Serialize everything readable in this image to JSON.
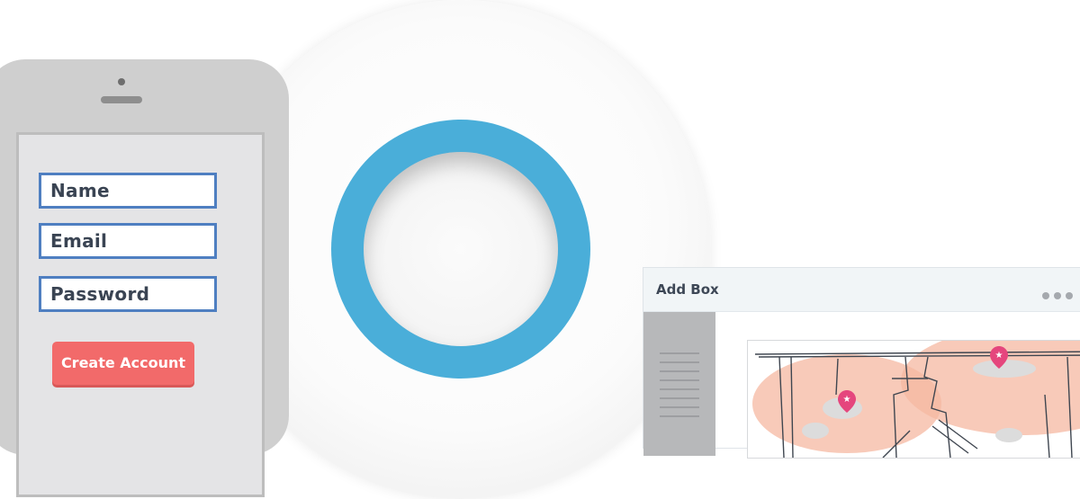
{
  "signup_form": {
    "name_placeholder": "Name",
    "email_placeholder": "Email",
    "password_placeholder": "Password",
    "submit_label": "Create Account"
  },
  "admin_window": {
    "title": "Add Box",
    "menu_icon": "more-horizontal-icon",
    "map_pin_icon": "star-pin-icon"
  },
  "colors": {
    "led_ring": "#4aaed9",
    "field_border": "#4f7fc1",
    "submit_button": "#f26a6a",
    "coverage_zone": "#f6b8a1",
    "map_pin": "#e5467d"
  }
}
